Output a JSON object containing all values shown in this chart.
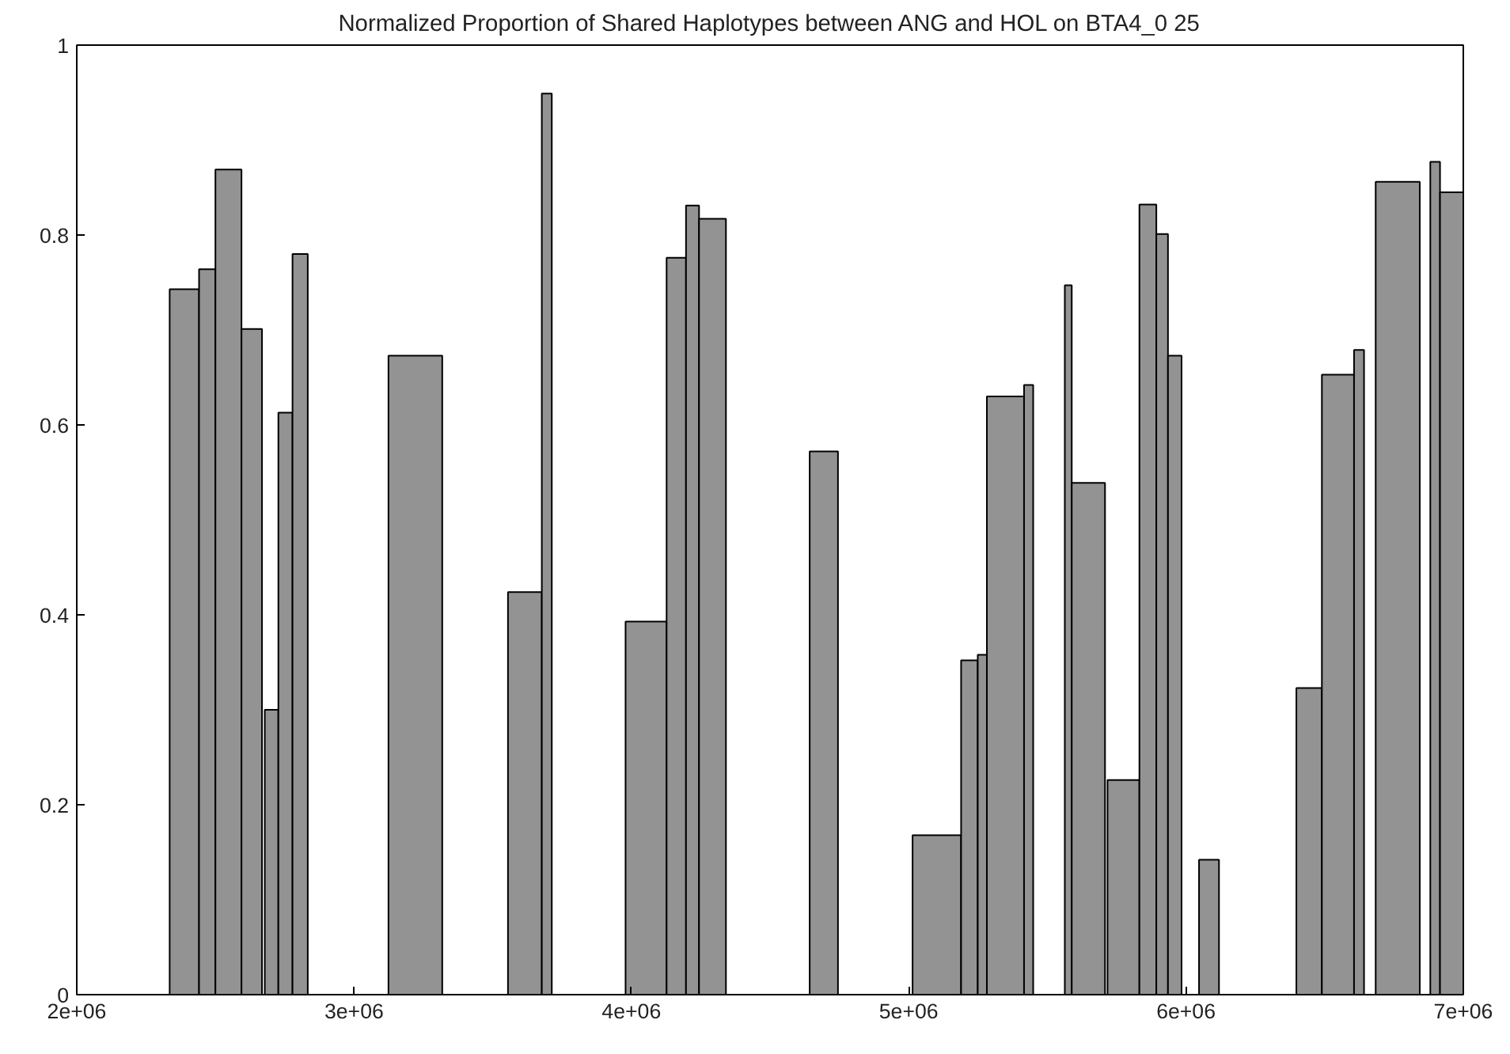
{
  "chart_data": {
    "type": "histogram",
    "title": "Normalized Proportion of Shared Haplotypes between ANG and HOL on BTA4_0 25",
    "bins": [
      2335000,
      2441000,
      2500000,
      2594000,
      2668000,
      2678000,
      2727000,
      2778000,
      2833000,
      3124000,
      3318000,
      3555000,
      3677000,
      3713000,
      3979000,
      4127000,
      4197000,
      4244000,
      4341000,
      4643000,
      4745000,
      5014000,
      5189000,
      5249000,
      5282000,
      5416000,
      5449000,
      5563000,
      5588000,
      5708000,
      5717000,
      5832000,
      5893000,
      5935000,
      5984000,
      6047000,
      6119000,
      6398000,
      6490000,
      6606000,
      6642000,
      6684000,
      6843000,
      6881000,
      6916000,
      7000000
    ],
    "values": [
      0.743,
      0.764,
      0.869,
      0.701,
      null,
      0.3,
      0.613,
      0.78,
      null,
      0.673,
      null,
      0.424,
      0.949,
      null,
      0.393,
      0.776,
      0.831,
      0.817,
      null,
      0.572,
      null,
      0.168,
      0.352,
      0.358,
      0.63,
      0.642,
      null,
      0.747,
      0.539,
      null,
      0.226,
      0.832,
      0.801,
      0.673,
      null,
      0.142,
      null,
      0.323,
      0.653,
      0.679,
      null,
      0.856,
      null,
      0.877,
      0.845
    ],
    "color": "#939393",
    "xlim": [
      2000000,
      7000000
    ],
    "xticks": [
      {
        "value": 2000000,
        "label": "2e+06"
      },
      {
        "value": 3000000,
        "label": "3e+06"
      },
      {
        "value": 4000000,
        "label": "4e+06"
      },
      {
        "value": 5000000,
        "label": "5e+06"
      },
      {
        "value": 6000000,
        "label": "6e+06"
      },
      {
        "value": 7000000,
        "label": "7e+06"
      }
    ],
    "ylim": [
      0,
      1
    ],
    "yticks": [
      0,
      0.2,
      0.4,
      0.6,
      0.8,
      1
    ],
    "grid": false
  }
}
